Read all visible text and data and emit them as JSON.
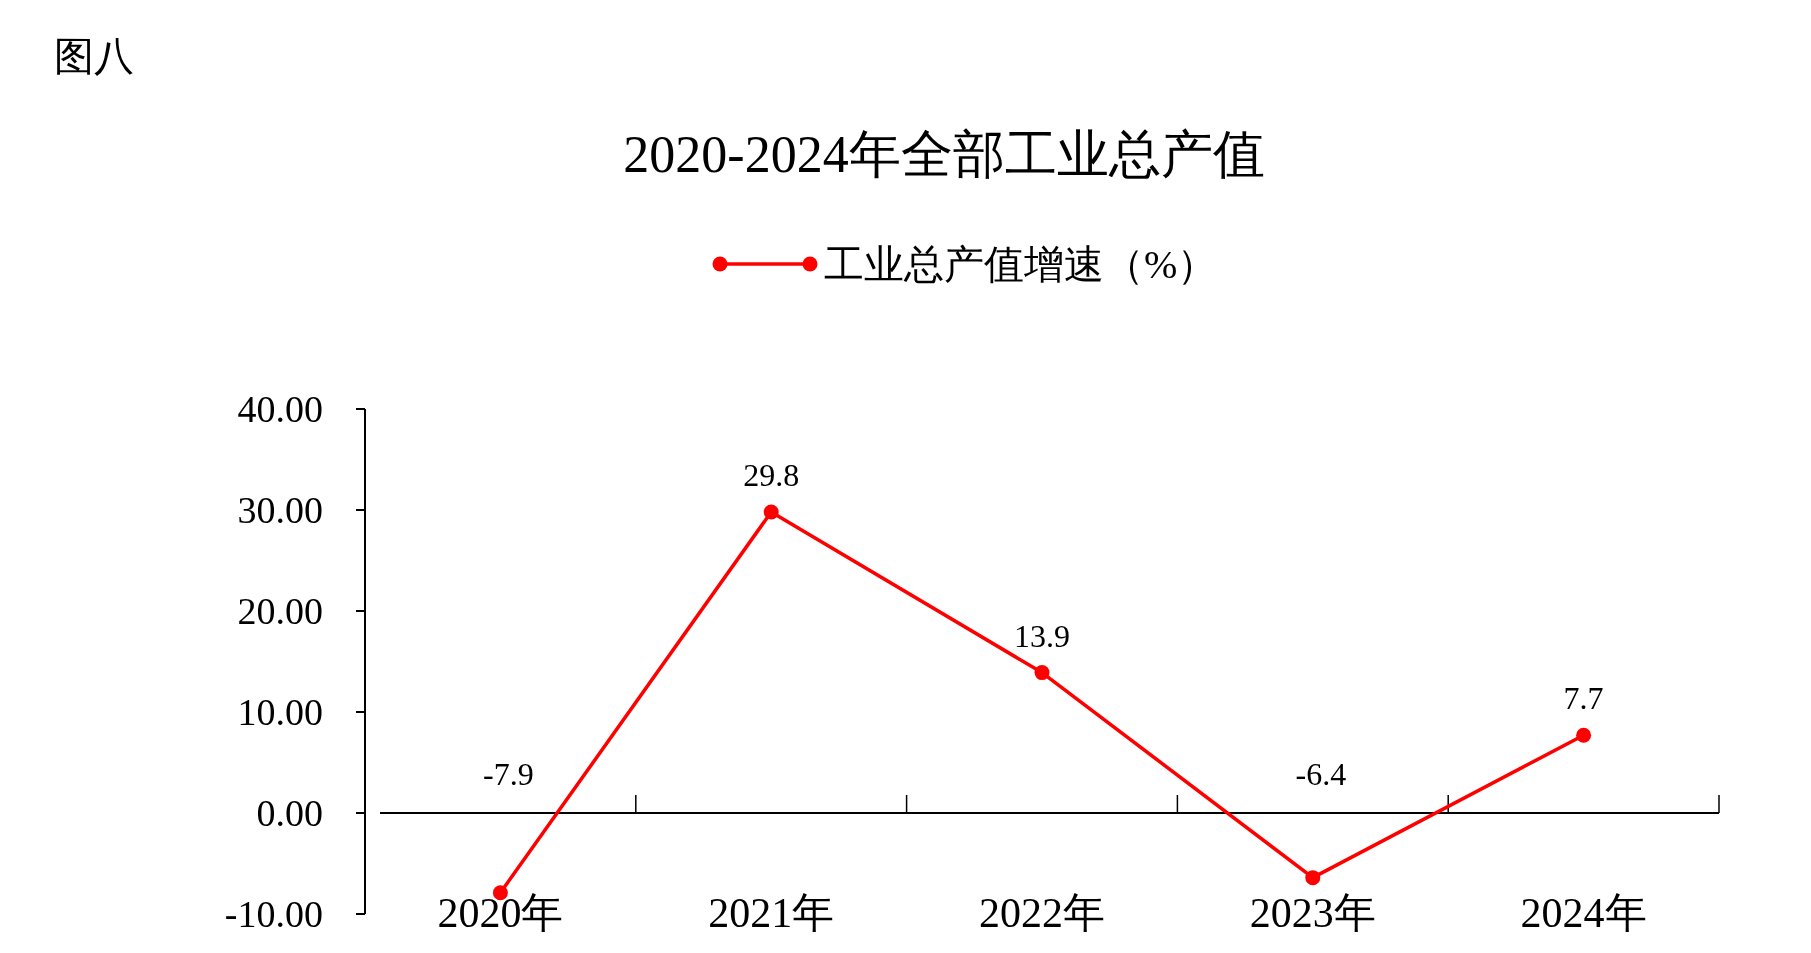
{
  "chart_data": {
    "type": "line",
    "title": "2020-2024年全部工业总产值",
    "annotations": [
      "图八"
    ],
    "categories": [
      "2020年",
      "2021年",
      "2022年",
      "2023年",
      "2024年"
    ],
    "series": [
      {
        "name": "工业总产值增速（%）",
        "color": "#ff0000",
        "values": [
          -7.9,
          29.8,
          13.9,
          -6.4,
          7.7
        ]
      }
    ],
    "ylim": [
      -10,
      40
    ],
    "yticks": [
      {
        "value": -10,
        "label": "-10.00"
      },
      {
        "value": 0,
        "label": "0.00"
      },
      {
        "value": 10,
        "label": "10.00"
      },
      {
        "value": 20,
        "label": "20.00"
      },
      {
        "value": 30,
        "label": "30.00"
      },
      {
        "value": 40,
        "label": "40.00"
      }
    ],
    "data_labels": true,
    "legend": "top",
    "marker": "circle",
    "line_style": "solid"
  }
}
